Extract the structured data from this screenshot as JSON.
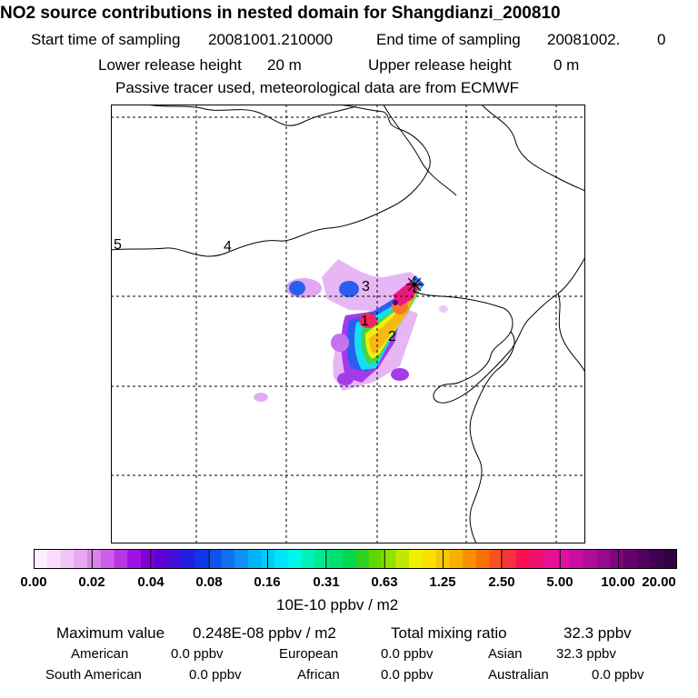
{
  "title": "NO2 source contributions in nested domain for Shangdianzi_200810",
  "sampling": {
    "start_label": "Start time of sampling",
    "start_value": "20081001.210000",
    "end_label": "End time of sampling",
    "end_value": "20081002.",
    "end_value_tail": "0"
  },
  "release": {
    "lower_label": "Lower release height",
    "lower_value": "20 m",
    "upper_label": "Upper release height",
    "upper_value": "0 m"
  },
  "tracer_note": "Passive tracer used, meteorological data are from ECMWF",
  "map": {
    "region_labels": [
      "1",
      "2",
      "3",
      "4",
      "5"
    ],
    "receptor_marker": "star-cross"
  },
  "colorbar": {
    "ticks": [
      "0.00",
      "0.02",
      "0.04",
      "0.08",
      "0.16",
      "0.31",
      "0.63",
      "1.25",
      "2.50",
      "5.00",
      "10.00",
      "20.00"
    ],
    "colors": [
      "#fcf0fc",
      "#f8dcf8",
      "#f0c4f4",
      "#e8a8f0",
      "#d884ec",
      "#cc60ea",
      "#b836e6",
      "#a010e0",
      "#8000d8",
      "#6000d4",
      "#4010d8",
      "#2020e0",
      "#1034e8",
      "#1050ec",
      "#1070f0",
      "#1090f4",
      "#00b4f8",
      "#00ccf8",
      "#00e4f8",
      "#00f8e8",
      "#00f0b8",
      "#00e890",
      "#00e070",
      "#00d850",
      "#30d020",
      "#60d800",
      "#90e000",
      "#c0e800",
      "#f0f000",
      "#f8e000",
      "#f8c800",
      "#f8b000",
      "#f89000",
      "#f87000",
      "#f85020",
      "#f83040",
      "#f81050",
      "#f01070",
      "#e81090",
      "#e010a0",
      "#c810a0",
      "#b00c98",
      "#980890",
      "#800480",
      "#680070",
      "#500060",
      "#400050",
      "#300040"
    ],
    "unit_label": "10E-10 ppbv / m2"
  },
  "stats": {
    "max_label": "Maximum value",
    "max_value": "0.248E-08 ppbv / m2",
    "total_label": "Total mixing ratio",
    "total_value": "32.3 ppbv"
  },
  "sources": {
    "american_label": "American",
    "american_value": "0.0 ppbv",
    "european_label": "European",
    "european_value": "0.0 ppbv",
    "asian_label": "Asian",
    "asian_value": "32.3 ppbv",
    "south_american_label": "South American",
    "south_american_value": "0.0 ppbv",
    "african_label": "African",
    "african_value": "0.0 ppbv",
    "australian_label": "Australian",
    "australian_value": "0.0 ppbv"
  }
}
